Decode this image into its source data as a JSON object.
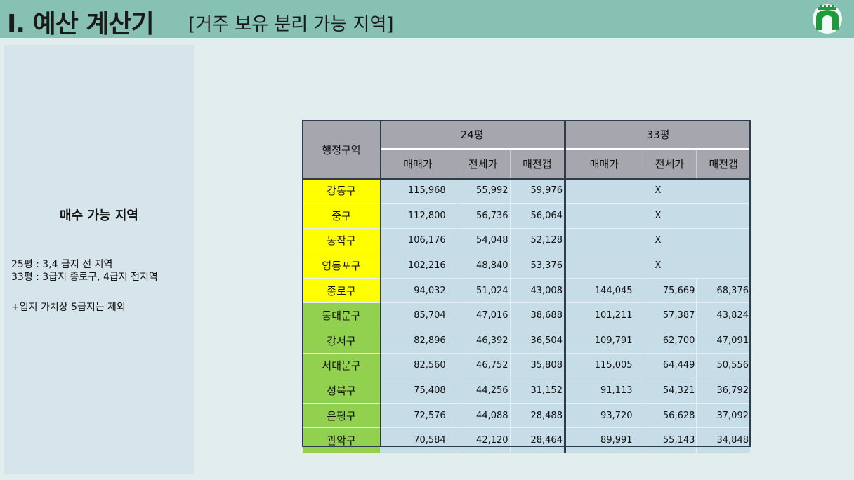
{
  "header": {
    "title": "I. 예산 계산기",
    "subtitle": "[거주 보유 분리 가능 지역]"
  },
  "sidebar": {
    "heading": "매수 가능 지역",
    "lines": [
      "25평 : 3,4 급지 전 지역",
      "33평 : 3급지 종로구, 4급지 전지역",
      "+입지 가치상 5급지는 제외"
    ]
  },
  "table": {
    "region_header": "행정구역",
    "groups": [
      "24평",
      "33평"
    ],
    "sub_headers": [
      "매매가",
      "전세가",
      "매전갭",
      "매매가",
      "전세가",
      "매전갭"
    ],
    "x_mark": "X",
    "highlight_colors": {
      "yellow": "#ffff00",
      "green": "#92d050"
    },
    "rows": [
      {
        "region": "강동구",
        "highlight": "yellow",
        "p24": [
          "115,968",
          "55,992",
          "59,976"
        ],
        "p33": null
      },
      {
        "region": "중구",
        "highlight": "yellow",
        "p24": [
          "112,800",
          "56,736",
          "56,064"
        ],
        "p33": null
      },
      {
        "region": "동작구",
        "highlight": "yellow",
        "p24": [
          "106,176",
          "54,048",
          "52,128"
        ],
        "p33": null
      },
      {
        "region": "영등포구",
        "highlight": "yellow",
        "p24": [
          "102,216",
          "48,840",
          "53,376"
        ],
        "p33": null
      },
      {
        "region": "종로구",
        "highlight": "yellow",
        "p24": [
          "94,032",
          "51,024",
          "43,008"
        ],
        "p33": [
          "144,045",
          "75,669",
          "68,376"
        ]
      },
      {
        "region": "동대문구",
        "highlight": "green",
        "p24": [
          "85,704",
          "47,016",
          "38,688"
        ],
        "p33": [
          "101,211",
          "57,387",
          "43,824"
        ]
      },
      {
        "region": "강서구",
        "highlight": "green",
        "p24": [
          "82,896",
          "46,392",
          "36,504"
        ],
        "p33": [
          "109,791",
          "62,700",
          "47,091"
        ]
      },
      {
        "region": "서대문구",
        "highlight": "green",
        "p24": [
          "82,560",
          "46,752",
          "35,808"
        ],
        "p33": [
          "115,005",
          "64,449",
          "50,556"
        ]
      },
      {
        "region": "성북구",
        "highlight": "green",
        "p24": [
          "75,408",
          "44,256",
          "31,152"
        ],
        "p33": [
          "91,113",
          "54,321",
          "36,792"
        ]
      },
      {
        "region": "은평구",
        "highlight": "green",
        "p24": [
          "72,576",
          "44,088",
          "28,488"
        ],
        "p33": [
          "93,720",
          "56,628",
          "37,092"
        ]
      },
      {
        "region": "관악구",
        "highlight": "green",
        "p24": [
          "70,584",
          "42,120",
          "28,464"
        ],
        "p33": [
          "89,991",
          "55,143",
          "34,848"
        ]
      }
    ]
  }
}
